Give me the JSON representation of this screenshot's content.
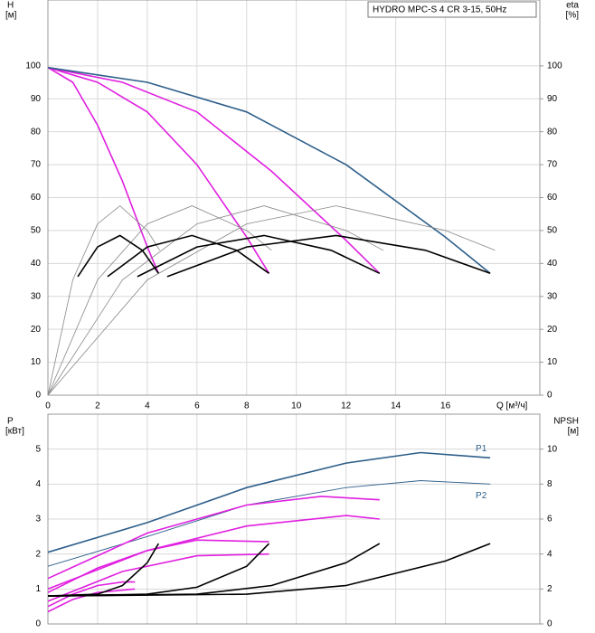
{
  "chart_data": [
    {
      "type": "line",
      "title": "HYDRO MPC-S 4 CR 3-15, 50Hz",
      "ylabel": "H",
      "yunit": "[м]",
      "y2label": "eta",
      "y2unit": "[%]",
      "xlabel": "Q [м³/ч]",
      "xlim": [
        0,
        19.8
      ],
      "xticks": [
        0,
        2,
        4,
        6,
        8,
        10,
        12,
        14,
        16
      ],
      "ylim": [
        0,
        120
      ],
      "yticks": [
        0,
        10,
        20,
        30,
        40,
        50,
        60,
        70,
        80,
        90,
        100
      ],
      "y2lim": [
        0,
        120
      ],
      "y2ticks": [
        0,
        10,
        20,
        30,
        40,
        50,
        60,
        70,
        80,
        90,
        100
      ],
      "grid": true,
      "series": [
        {
          "color": "#e020e0",
          "x": [
            0,
            1,
            2,
            3,
            4,
            4.45
          ],
          "values": [
            99.5,
            95,
            82,
            65,
            45,
            37
          ]
        },
        {
          "color": "#e020e0",
          "x": [
            0,
            2,
            4,
            6,
            8,
            8.9
          ],
          "values": [
            99.5,
            95,
            86,
            70,
            48,
            37
          ]
        },
        {
          "color": "#e020e0",
          "x": [
            0,
            3,
            6,
            9,
            12,
            13.35
          ],
          "values": [
            99.5,
            95,
            86,
            68,
            47,
            37
          ]
        },
        {
          "color": "#2e5f8a",
          "x": [
            0,
            4,
            8,
            12,
            16,
            17.8
          ],
          "values": [
            99.5,
            95,
            86,
            70,
            48,
            37
          ]
        },
        {
          "color": "#888888",
          "axis": "y2",
          "x": [
            0,
            1,
            2,
            2.9,
            4,
            4.5
          ],
          "values": [
            0,
            35,
            52,
            57.5,
            50,
            44
          ]
        },
        {
          "color": "#888888",
          "axis": "y2",
          "x": [
            0,
            2,
            4,
            5.8,
            8,
            9
          ],
          "values": [
            0,
            35,
            52,
            57.5,
            50,
            44
          ]
        },
        {
          "color": "#888888",
          "axis": "y2",
          "x": [
            0,
            3,
            6,
            8.7,
            12,
            13.5
          ],
          "values": [
            0,
            35,
            52,
            57.5,
            50,
            44
          ]
        },
        {
          "color": "#888888",
          "axis": "y2",
          "x": [
            0,
            4,
            8,
            11.6,
            16,
            18
          ],
          "values": [
            0,
            35,
            52,
            57.5,
            50,
            44
          ]
        },
        {
          "color": "#000000",
          "axis": "y2",
          "x": [
            1.2,
            2,
            2.9,
            3.8,
            4.45
          ],
          "values": [
            36,
            45,
            48.5,
            44,
            37
          ]
        },
        {
          "color": "#000000",
          "axis": "y2",
          "x": [
            2.4,
            4,
            5.8,
            7.6,
            8.9
          ],
          "values": [
            36,
            45,
            48.5,
            44,
            37
          ]
        },
        {
          "color": "#000000",
          "axis": "y2",
          "x": [
            3.6,
            6,
            8.7,
            11.4,
            13.35
          ],
          "values": [
            36,
            45,
            48.5,
            44,
            37
          ]
        },
        {
          "color": "#000000",
          "axis": "y2",
          "x": [
            4.8,
            8,
            11.6,
            15.2,
            17.8
          ],
          "values": [
            36,
            45,
            48.5,
            44,
            37
          ]
        }
      ]
    },
    {
      "type": "line",
      "ylabel": "P",
      "yunit": "[кВт]",
      "y2label": "NPSH",
      "y2unit": "[м]",
      "xlim": [
        0,
        19.8
      ],
      "ylim": [
        0,
        6
      ],
      "yticks": [
        0,
        1,
        2,
        3,
        4,
        5
      ],
      "y2lim": [
        0,
        12
      ],
      "y2ticks": [
        0,
        2,
        4,
        6,
        8,
        10
      ],
      "grid": true,
      "series": [
        {
          "name": "P1",
          "color": "#2e5f8a",
          "x": [
            0,
            4,
            8,
            12,
            15,
            17.8
          ],
          "values": [
            2.05,
            2.9,
            3.9,
            4.6,
            4.9,
            4.75
          ]
        },
        {
          "name": "P2",
          "color": "#2e5f8a",
          "x": [
            0,
            4,
            8,
            12,
            15,
            17.8
          ],
          "values": [
            1.65,
            2.5,
            3.4,
            3.9,
            4.1,
            4.0
          ]
        },
        {
          "color": "#e020e0",
          "x": [
            0,
            4,
            8,
            11,
            13.35
          ],
          "values": [
            1.3,
            2.6,
            3.4,
            3.65,
            3.55
          ]
        },
        {
          "color": "#e020e0",
          "x": [
            0,
            4,
            8,
            12,
            13.35
          ],
          "values": [
            1.0,
            2.1,
            2.8,
            3.1,
            3.0
          ]
        },
        {
          "color": "#e020e0",
          "x": [
            0,
            2,
            4,
            6,
            8.9
          ],
          "values": [
            0.9,
            1.6,
            2.1,
            2.4,
            2.35
          ]
        },
        {
          "color": "#e020e0",
          "x": [
            0,
            3,
            6,
            8.9
          ],
          "values": [
            0.65,
            1.5,
            1.95,
            2.0
          ]
        },
        {
          "color": "#e020e0",
          "x": [
            0,
            1,
            2,
            3,
            3.5
          ],
          "values": [
            0.5,
            0.85,
            1.1,
            1.2,
            1.2
          ]
        },
        {
          "color": "#e020e0",
          "x": [
            0,
            1,
            2,
            3.5
          ],
          "values": [
            0.35,
            0.7,
            0.9,
            1.0
          ]
        },
        {
          "color": "#000000",
          "axis": "y2",
          "x": [
            0,
            2,
            3,
            4,
            4.45
          ],
          "values": [
            1.6,
            1.7,
            2.2,
            3.5,
            4.6
          ]
        },
        {
          "color": "#000000",
          "axis": "y2",
          "x": [
            0,
            4,
            6,
            8,
            8.9
          ],
          "values": [
            1.6,
            1.7,
            2.1,
            3.3,
            4.6
          ]
        },
        {
          "color": "#000000",
          "axis": "y2",
          "x": [
            0,
            6,
            9,
            12,
            13.35
          ],
          "values": [
            1.6,
            1.7,
            2.2,
            3.5,
            4.6
          ]
        },
        {
          "color": "#000000",
          "axis": "y2",
          "x": [
            0,
            8,
            12,
            16,
            17.8
          ],
          "values": [
            1.6,
            1.7,
            2.2,
            3.6,
            4.6
          ]
        }
      ]
    }
  ]
}
